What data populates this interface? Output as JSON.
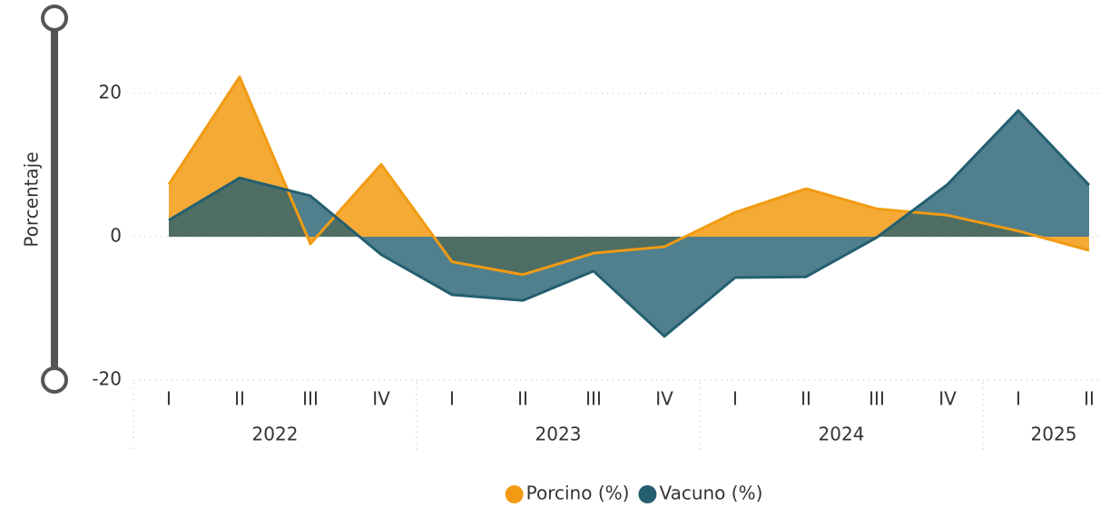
{
  "chart_data": {
    "type": "area",
    "y_label": "Porcentaje",
    "categories": [
      "I",
      "II",
      "III",
      "IV",
      "I",
      "II",
      "III",
      "IV",
      "I",
      "II",
      "III",
      "IV",
      "I",
      "II"
    ],
    "category_years": [
      "2022",
      "2022",
      "2022",
      "2022",
      "2023",
      "2023",
      "2023",
      "2023",
      "2024",
      "2024",
      "2024",
      "2024",
      "2025",
      "2025"
    ],
    "series": [
      {
        "name": "Porcino (%)",
        "color": "#f29b12",
        "values": [
          7.3,
          22.3,
          -1.0,
          10.1,
          -3.5,
          -5.3,
          -2.3,
          -1.4,
          3.4,
          6.7,
          3.9,
          3.0,
          0.8,
          -1.9
        ]
      },
      {
        "name": "Vacuno (%)",
        "color": "#245f70",
        "values": [
          2.3,
          8.2,
          5.7,
          -2.5,
          -8.1,
          -8.9,
          -4.8,
          -13.9,
          -5.7,
          -5.6,
          -0.1,
          7.3,
          17.6,
          7.2
        ]
      }
    ],
    "ylim": [
      -20,
      30
    ],
    "yticks": [
      -20,
      0,
      20
    ],
    "grid": true,
    "legend": "bottom"
  }
}
